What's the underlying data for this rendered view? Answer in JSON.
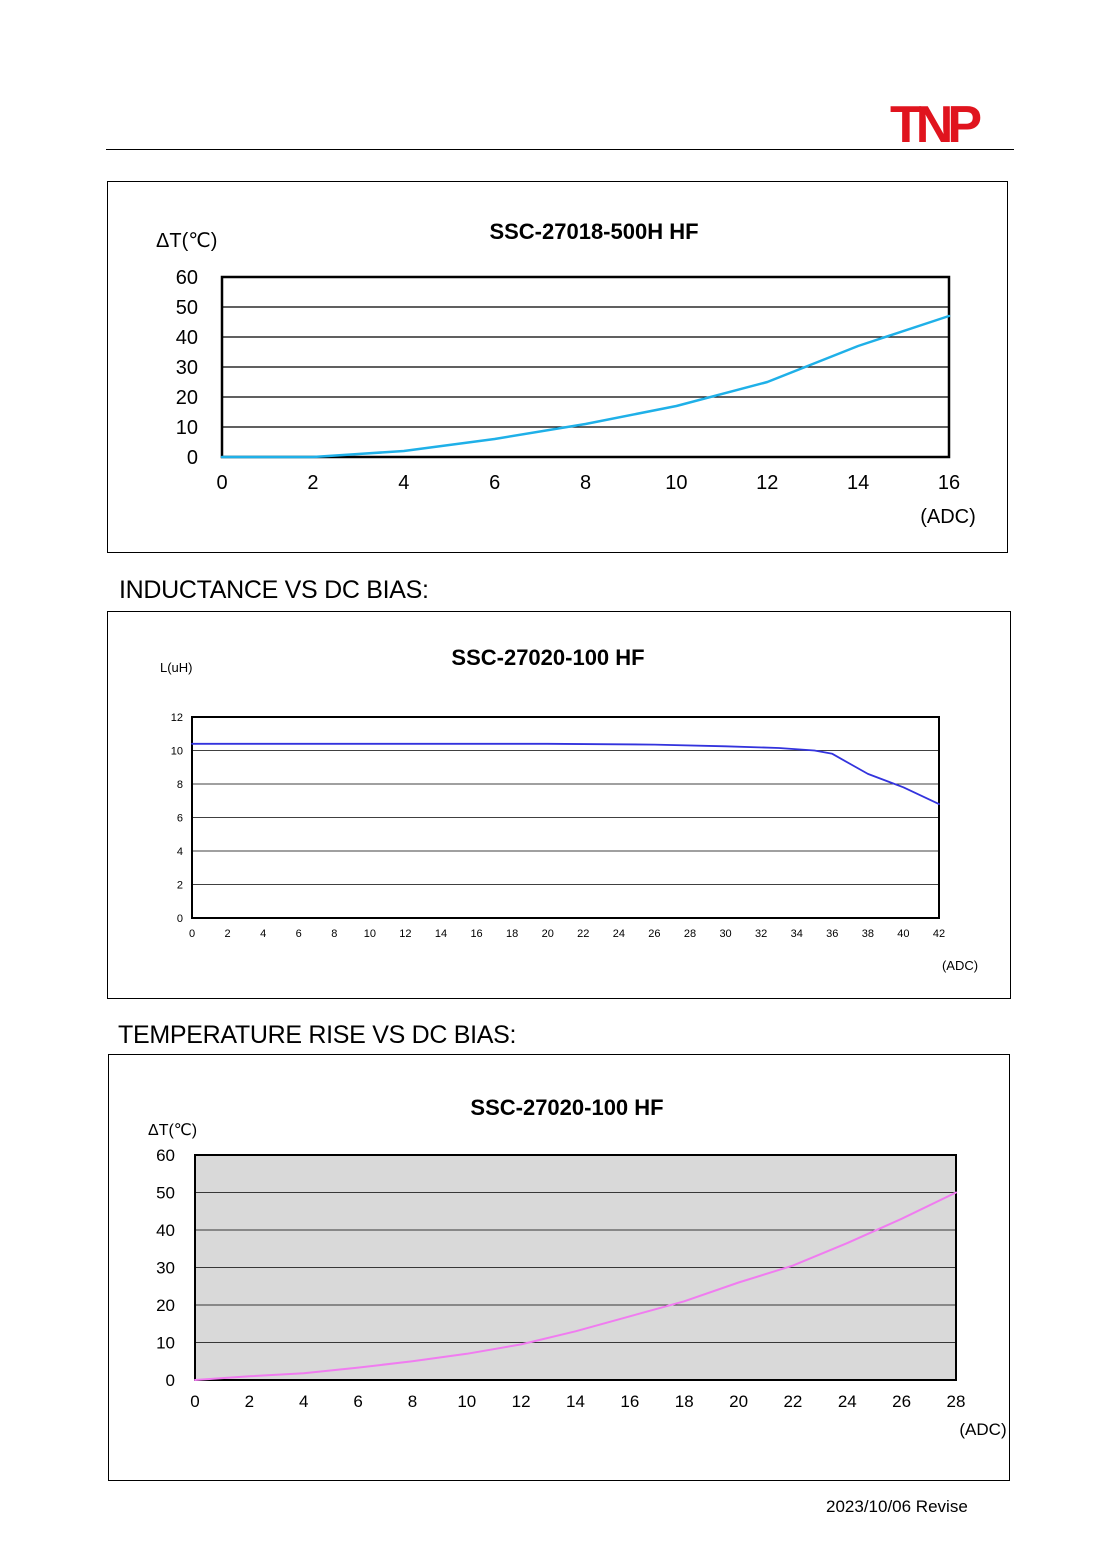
{
  "header": {
    "logo_text": "TNP",
    "logo_color": "#e0141e"
  },
  "sections": [
    {
      "heading": ""
    },
    {
      "heading": "INDUCTANCE VS DC BIAS:"
    },
    {
      "heading": "TEMPERATURE RISE VS DC BIAS:"
    }
  ],
  "footer": {
    "revision": "2023/10/06 Revise"
  },
  "chart_data": [
    {
      "type": "line",
      "title": "SSC-27018-500H  HF",
      "ylabel": "ΔT(℃)",
      "xlabel": "(ADC)",
      "xlim": [
        0,
        16
      ],
      "ylim": [
        0,
        60
      ],
      "xticks": [
        0,
        2,
        4,
        6,
        8,
        10,
        12,
        14,
        16
      ],
      "yticks": [
        0,
        10,
        20,
        30,
        40,
        50,
        60
      ],
      "grid": true,
      "series": [
        {
          "color": "#1fb0e8",
          "x": [
            0,
            2,
            3,
            4,
            6,
            8,
            10,
            12,
            14,
            16
          ],
          "y": [
            0,
            0,
            1,
            2,
            6,
            11,
            17,
            25,
            37,
            47
          ]
        }
      ]
    },
    {
      "type": "line",
      "title": "SSC-27020-100 HF",
      "ylabel": "L(uH)",
      "xlabel": "(ADC)",
      "xlim": [
        0,
        42
      ],
      "ylim": [
        0,
        12
      ],
      "xticks": [
        0,
        2,
        4,
        6,
        8,
        10,
        12,
        14,
        16,
        18,
        20,
        22,
        24,
        26,
        28,
        30,
        32,
        34,
        36,
        38,
        40,
        42
      ],
      "yticks": [
        0,
        2,
        4,
        6,
        8,
        10,
        12
      ],
      "grid": true,
      "series": [
        {
          "color": "#3333dd",
          "x": [
            0,
            10,
            20,
            26,
            30,
            33,
            35,
            36,
            37,
            38,
            40,
            42
          ],
          "y": [
            10.4,
            10.4,
            10.4,
            10.35,
            10.25,
            10.15,
            10.0,
            9.8,
            9.2,
            8.6,
            7.8,
            6.8
          ]
        }
      ]
    },
    {
      "type": "line",
      "title": "SSC-27020-100 HF",
      "ylabel": "ΔT(℃)",
      "xlabel": "(ADC)",
      "xlim": [
        0,
        28
      ],
      "ylim": [
        0,
        60
      ],
      "xticks": [
        0,
        2,
        4,
        6,
        8,
        10,
        12,
        14,
        16,
        18,
        20,
        22,
        24,
        26,
        28
      ],
      "yticks": [
        0,
        10,
        20,
        30,
        40,
        50,
        60
      ],
      "grid": true,
      "plot_background": "#d9d9d9",
      "series": [
        {
          "color": "#f07cf0",
          "x": [
            0,
            2,
            4,
            6,
            8,
            10,
            12,
            14,
            16,
            18,
            20,
            22,
            24,
            26,
            28
          ],
          "y": [
            0,
            1,
            1.8,
            3.3,
            5,
            7,
            9.5,
            13,
            17,
            21,
            26,
            30.5,
            36.5,
            43,
            50
          ]
        }
      ]
    }
  ]
}
